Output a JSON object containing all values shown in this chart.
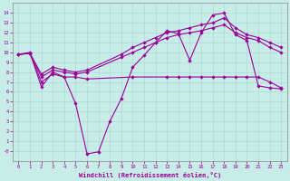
{
  "xlabel": "Windchill (Refroidissement éolien,°C)",
  "bg_color": "#c8ece8",
  "line_color": "#990099",
  "grid_color": "#b0d8d4",
  "xlim": [
    -0.5,
    23.5
  ],
  "ylim": [
    -1,
    15
  ],
  "xticks": [
    0,
    1,
    2,
    3,
    4,
    5,
    6,
    7,
    8,
    9,
    10,
    11,
    12,
    13,
    14,
    15,
    16,
    17,
    18,
    19,
    20,
    21,
    22,
    23
  ],
  "yticks": [
    0,
    1,
    2,
    3,
    4,
    5,
    6,
    7,
    8,
    9,
    10,
    11,
    12,
    13,
    14
  ],
  "ytick_labels": [
    "-0",
    "1",
    "2",
    "3",
    "4",
    "5",
    "6",
    "7",
    "8",
    "9",
    "10",
    "11",
    "12",
    "13",
    "14"
  ],
  "s1_x": [
    0,
    1,
    2,
    3,
    4,
    5,
    6,
    7,
    8,
    9,
    10,
    11,
    12,
    13,
    14,
    15,
    16,
    17,
    18,
    19,
    20,
    21,
    22,
    23
  ],
  "s1_y": [
    9.8,
    10.0,
    6.5,
    8.0,
    7.5,
    4.8,
    -0.3,
    -0.1,
    3.0,
    5.3,
    8.5,
    9.7,
    11.0,
    12.2,
    11.9,
    9.2,
    12.0,
    13.8,
    14.0,
    11.8,
    11.2,
    6.6,
    6.4,
    6.3
  ],
  "s2_x": [
    0,
    1,
    2,
    3,
    4,
    5,
    6,
    10,
    13,
    14,
    15,
    16,
    17,
    18,
    19,
    20,
    21,
    22,
    23
  ],
  "s2_y": [
    9.8,
    9.9,
    7.0,
    7.8,
    7.5,
    7.5,
    7.3,
    7.5,
    7.5,
    7.5,
    7.5,
    7.5,
    7.5,
    7.5,
    7.5,
    7.5,
    7.5,
    7.0,
    6.4
  ],
  "s3_x": [
    0,
    1,
    2,
    3,
    4,
    5,
    6,
    9,
    10,
    11,
    12,
    13,
    14,
    15,
    16,
    17,
    18,
    19,
    20,
    21,
    22,
    23
  ],
  "s3_y": [
    9.8,
    9.9,
    7.5,
    8.2,
    8.0,
    7.8,
    8.0,
    9.5,
    10.0,
    10.5,
    11.0,
    11.5,
    11.8,
    12.0,
    12.2,
    12.5,
    12.8,
    12.0,
    11.5,
    11.2,
    10.5,
    10.0
  ],
  "s4_x": [
    0,
    1,
    2,
    3,
    4,
    5,
    6,
    9,
    10,
    11,
    12,
    13,
    14,
    15,
    16,
    17,
    18,
    19,
    20,
    21,
    22,
    23
  ],
  "s4_y": [
    9.8,
    9.9,
    7.8,
    8.5,
    8.2,
    8.0,
    8.2,
    9.8,
    10.5,
    11.0,
    11.5,
    12.0,
    12.2,
    12.5,
    12.8,
    13.0,
    13.5,
    12.5,
    11.8,
    11.5,
    11.0,
    10.5
  ]
}
